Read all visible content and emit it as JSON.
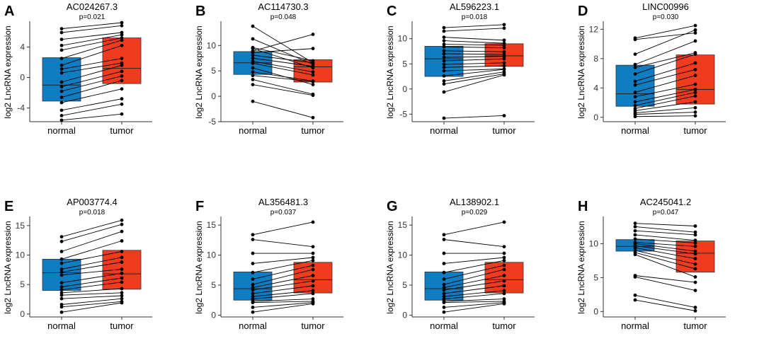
{
  "colors": {
    "normal": "#0f7dc2",
    "tumor": "#f03c1e",
    "line": "#000000",
    "axis": "#333333"
  },
  "chart_data": [
    {
      "type": "boxplot-paired",
      "letter": "A",
      "title": "AC024267.3",
      "pvalue": "p=0.021",
      "ylabel": "log2 LncRNA expression",
      "categories": [
        "normal",
        "tumor"
      ],
      "ylim": [
        -5.8,
        7.2
      ],
      "yticks": [
        -4,
        0,
        4
      ],
      "box": {
        "normal": {
          "q1": -3.1,
          "median": -1.0,
          "q3": 2.6
        },
        "tumor": {
          "q1": -0.8,
          "median": 1.2,
          "q3": 5.2
        }
      },
      "pairs": [
        [
          6.4,
          7.2
        ],
        [
          5.9,
          6.8
        ],
        [
          5.0,
          5.9
        ],
        [
          4.2,
          5.6
        ],
        [
          3.6,
          5.2
        ],
        [
          2.5,
          4.9
        ],
        [
          1.6,
          4.2
        ],
        [
          1.1,
          2.5
        ],
        [
          0.6,
          1.9
        ],
        [
          -0.6,
          1.6
        ],
        [
          -1.2,
          0.8
        ],
        [
          -1.8,
          0.2
        ],
        [
          -2.6,
          -0.4
        ],
        [
          -3.3,
          -1.5
        ],
        [
          -4.3,
          -2.8
        ],
        [
          -5.0,
          -3.5
        ],
        [
          -5.6,
          -4.8
        ]
      ]
    },
    {
      "type": "boxplot-paired",
      "letter": "B",
      "title": "AC114730.3",
      "pvalue": "p=0.048",
      "ylabel": "log2 LncRNA expression",
      "categories": [
        "normal",
        "tumor"
      ],
      "ylim": [
        -5.0,
        14.5
      ],
      "yticks": [
        -5,
        0,
        5,
        10
      ],
      "box": {
        "normal": {
          "q1": 4.3,
          "median": 6.6,
          "q3": 8.8
        },
        "tumor": {
          "q1": 2.8,
          "median": 5.8,
          "q3": 7.2
        }
      },
      "pairs": [
        [
          13.8,
          6.6
        ],
        [
          11.3,
          6.3
        ],
        [
          9.6,
          7.0
        ],
        [
          9.4,
          5.6
        ],
        [
          8.9,
          12.2
        ],
        [
          8.6,
          9.4
        ],
        [
          8.1,
          6.6
        ],
        [
          7.5,
          5.9
        ],
        [
          6.9,
          4.8
        ],
        [
          6.5,
          4.2
        ],
        [
          5.6,
          2.3
        ],
        [
          4.8,
          3.0
        ],
        [
          4.1,
          2.9
        ],
        [
          3.3,
          0.4
        ],
        [
          2.3,
          0.2
        ],
        [
          -1.0,
          -4.2
        ]
      ]
    },
    {
      "type": "boxplot-paired",
      "letter": "C",
      "title": "AL596223.1",
      "pvalue": "p=0.018",
      "ylabel": "log2 LncRNA expression",
      "categories": [
        "normal",
        "tumor"
      ],
      "ylim": [
        -6.5,
        13.2
      ],
      "yticks": [
        -5,
        0,
        5,
        10
      ],
      "box": {
        "normal": {
          "q1": 2.5,
          "median": 6.0,
          "q3": 8.5
        },
        "tumor": {
          "q1": 4.5,
          "median": 6.6,
          "q3": 9.0
        }
      },
      "pairs": [
        [
          12.2,
          12.8
        ],
        [
          11.5,
          12.1
        ],
        [
          10.3,
          9.7
        ],
        [
          9.6,
          9.1
        ],
        [
          8.9,
          8.7
        ],
        [
          8.4,
          8.2
        ],
        [
          7.6,
          7.4
        ],
        [
          7.0,
          6.9
        ],
        [
          6.3,
          6.5
        ],
        [
          5.6,
          6.0
        ],
        [
          4.9,
          5.2
        ],
        [
          4.3,
          4.6
        ],
        [
          3.6,
          4.0
        ],
        [
          2.6,
          3.9
        ],
        [
          1.6,
          3.4
        ],
        [
          1.0,
          3.0
        ],
        [
          -0.6,
          2.8
        ],
        [
          -5.8,
          -5.3
        ]
      ]
    },
    {
      "type": "boxplot-paired",
      "letter": "D",
      "title": "LINC00996",
      "pvalue": "p=0.030",
      "ylabel": "log2 LncRNA expression",
      "categories": [
        "normal",
        "tumor"
      ],
      "ylim": [
        -0.6,
        12.9
      ],
      "yticks": [
        0,
        4,
        8,
        12
      ],
      "box": {
        "normal": {
          "q1": 1.5,
          "median": 3.2,
          "q3": 7.1
        },
        "tumor": {
          "q1": 1.8,
          "median": 3.8,
          "q3": 8.5
        }
      },
      "pairs": [
        [
          10.8,
          12.5
        ],
        [
          10.6,
          11.5
        ],
        [
          8.6,
          11.9
        ],
        [
          7.2,
          10.4
        ],
        [
          6.8,
          8.8
        ],
        [
          5.9,
          8.6
        ],
        [
          4.9,
          7.4
        ],
        [
          4.4,
          6.5
        ],
        [
          3.4,
          5.7
        ],
        [
          2.8,
          4.5
        ],
        [
          2.1,
          3.8
        ],
        [
          1.6,
          3.4
        ],
        [
          1.2,
          2.9
        ],
        [
          0.9,
          2.1
        ],
        [
          0.6,
          1.3
        ],
        [
          0.4,
          0.7
        ],
        [
          0.1,
          0.2
        ]
      ]
    },
    {
      "type": "boxplot-paired",
      "letter": "E",
      "title": "AP003774.4",
      "pvalue": "p=0.018",
      "ylabel": "log2 LncRNA expression",
      "categories": [
        "normal",
        "tumor"
      ],
      "ylim": [
        -0.5,
        16.3
      ],
      "yticks": [
        0,
        5,
        10,
        15
      ],
      "box": {
        "normal": {
          "q1": 4.0,
          "median": 7.0,
          "q3": 9.3
        },
        "tumor": {
          "q1": 4.2,
          "median": 6.8,
          "q3": 10.8
        }
      },
      "pairs": [
        [
          13.1,
          15.9
        ],
        [
          12.3,
          15.2
        ],
        [
          10.6,
          14.0
        ],
        [
          9.3,
          12.4
        ],
        [
          8.6,
          10.6
        ],
        [
          7.6,
          9.6
        ],
        [
          7.1,
          8.8
        ],
        [
          6.6,
          7.6
        ],
        [
          5.3,
          6.9
        ],
        [
          4.6,
          6.1
        ],
        [
          4.1,
          5.4
        ],
        [
          3.6,
          4.3
        ],
        [
          3.2,
          3.6
        ],
        [
          2.6,
          3.1
        ],
        [
          1.6,
          2.6
        ],
        [
          1.2,
          2.1
        ],
        [
          0.3,
          1.9
        ]
      ]
    },
    {
      "type": "boxplot-paired",
      "letter": "F",
      "title": "AL356481.3",
      "pvalue": "p=0.037",
      "ylabel": "log2 LncRNA expression",
      "categories": [
        "normal",
        "tumor"
      ],
      "ylim": [
        -0.3,
        16.2
      ],
      "yticks": [
        0,
        5,
        10,
        15
      ],
      "box": {
        "normal": {
          "q1": 2.5,
          "median": 4.4,
          "q3": 7.2
        },
        "tumor": {
          "q1": 3.7,
          "median": 5.9,
          "q3": 8.8
        }
      },
      "pairs": [
        [
          13.4,
          15.5
        ],
        [
          12.6,
          11.4
        ],
        [
          10.3,
          10.3
        ],
        [
          8.6,
          9.6
        ],
        [
          7.1,
          9.1
        ],
        [
          6.0,
          8.3
        ],
        [
          5.1,
          7.6
        ],
        [
          4.6,
          6.6
        ],
        [
          4.2,
          5.7
        ],
        [
          3.6,
          4.9
        ],
        [
          3.1,
          4.1
        ],
        [
          2.7,
          3.6
        ],
        [
          2.3,
          2.7
        ],
        [
          2.1,
          2.3
        ],
        [
          1.3,
          2.1
        ],
        [
          0.5,
          1.9
        ]
      ]
    },
    {
      "type": "boxplot-paired",
      "letter": "G",
      "title": "AL138902.1",
      "pvalue": "p=0.029",
      "ylabel": "log2 LncRNA expression",
      "categories": [
        "normal",
        "tumor"
      ],
      "ylim": [
        -0.3,
        16.2
      ],
      "yticks": [
        0,
        5,
        10,
        15
      ],
      "box": {
        "normal": {
          "q1": 2.5,
          "median": 4.4,
          "q3": 7.2
        },
        "tumor": {
          "q1": 3.7,
          "median": 5.9,
          "q3": 8.8
        }
      },
      "pairs": [
        [
          13.4,
          15.5
        ],
        [
          12.6,
          11.4
        ],
        [
          10.3,
          10.3
        ],
        [
          8.6,
          9.6
        ],
        [
          7.1,
          9.1
        ],
        [
          6.0,
          8.3
        ],
        [
          5.1,
          7.6
        ],
        [
          4.6,
          6.6
        ],
        [
          4.2,
          5.7
        ],
        [
          3.6,
          4.9
        ],
        [
          3.1,
          4.1
        ],
        [
          2.7,
          3.6
        ],
        [
          2.3,
          2.7
        ],
        [
          2.1,
          2.3
        ],
        [
          1.3,
          2.1
        ],
        [
          0.5,
          1.9
        ]
      ]
    },
    {
      "type": "boxplot-paired",
      "letter": "H",
      "title": "AC245041.2",
      "pvalue": "p=0.047",
      "ylabel": "log2 LncRNA expression",
      "categories": [
        "normal",
        "tumor"
      ],
      "ylim": [
        -0.8,
        13.8
      ],
      "yticks": [
        0,
        5,
        10
      ],
      "box": {
        "normal": {
          "q1": 8.9,
          "median": 9.6,
          "q3": 10.6
        },
        "tumor": {
          "q1": 5.8,
          "median": 8.6,
          "q3": 10.4
        }
      },
      "pairs": [
        [
          13.0,
          12.6
        ],
        [
          12.5,
          11.7
        ],
        [
          11.9,
          11.3
        ],
        [
          11.3,
          10.5
        ],
        [
          10.7,
          10.1
        ],
        [
          10.2,
          9.6
        ],
        [
          10.0,
          8.9
        ],
        [
          9.7,
          8.5
        ],
        [
          9.4,
          7.8
        ],
        [
          9.0,
          7.0
        ],
        [
          8.7,
          6.3
        ],
        [
          8.4,
          5.1
        ],
        [
          5.3,
          4.3
        ],
        [
          5.1,
          3.1
        ],
        [
          2.4,
          0.6
        ],
        [
          1.7,
          0.1
        ]
      ]
    }
  ]
}
